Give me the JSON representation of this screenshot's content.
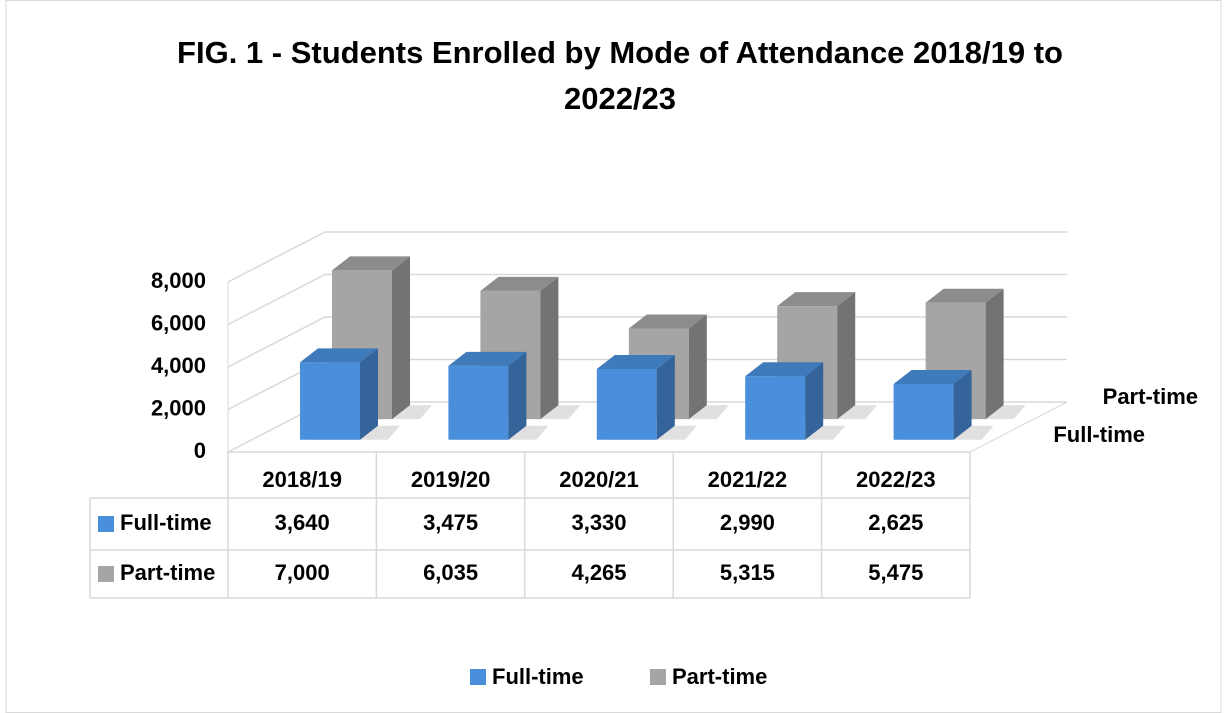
{
  "chart_data": {
    "type": "bar3d",
    "title": "FIG. 1 - Students Enrolled by Mode of Attendance 2018/19 to 2022/23",
    "categories": [
      "2018/19",
      "2019/20",
      "2020/21",
      "2021/22",
      "2022/23"
    ],
    "series": [
      {
        "name": "Full-time",
        "color": "#4a8fdb",
        "values": [
          3640,
          3475,
          3330,
          2990,
          2625
        ],
        "value_labels": [
          "3,640",
          "3,475",
          "3,330",
          "2,990",
          "2,625"
        ]
      },
      {
        "name": "Part-time",
        "color": "#a5a5a5",
        "values": [
          7000,
          6035,
          4265,
          5315,
          5475
        ],
        "value_labels": [
          "7,000",
          "6,035",
          "4,265",
          "5,315",
          "5,475"
        ]
      }
    ],
    "ylim": [
      0,
      8000
    ],
    "yticks": [
      0,
      {
        "value": 2000,
        "label": "2,000"
      },
      {
        "value": 4000,
        "label": "4,000"
      },
      {
        "value": 6000,
        "label": "6,000"
      },
      {
        "value": 8000,
        "label": "8,000"
      }
    ],
    "grid": true,
    "legend": "bottom"
  }
}
